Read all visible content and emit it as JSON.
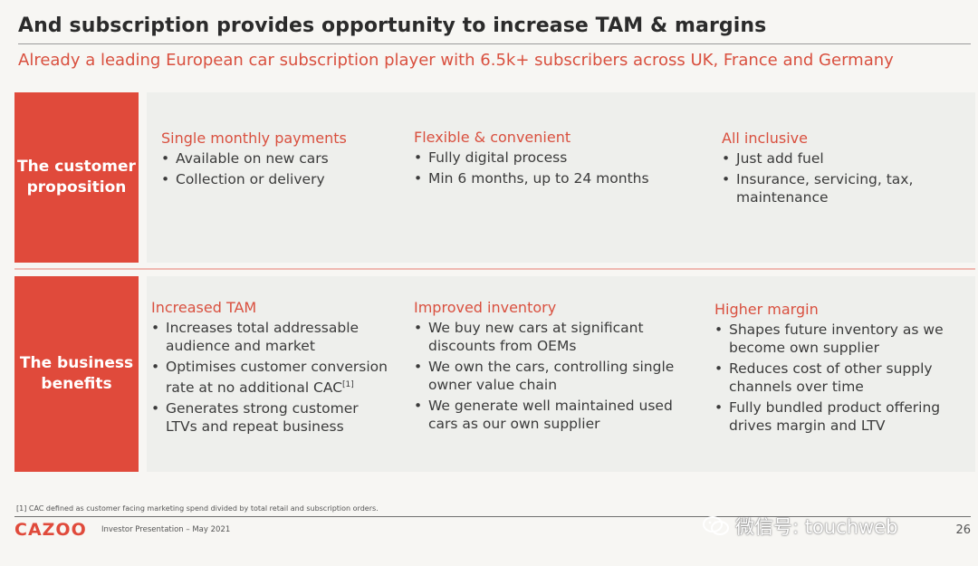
{
  "header": {
    "title": "And subscription provides opportunity to increase TAM & margins",
    "subtitle": "Already a leading European car subscription player with 6.5k+ subscribers across UK, France and Germany"
  },
  "rows": [
    {
      "label": "The customer proposition",
      "columns": [
        {
          "heading": "Single monthly payments",
          "bullets": [
            "Available on new cars",
            "Collection or delivery"
          ]
        },
        {
          "heading": "Flexible & convenient",
          "bullets": [
            "Fully digital process",
            "Min 6 months, up to 24 months"
          ]
        },
        {
          "heading": "All inclusive",
          "bullets": [
            "Just add fuel",
            "Insurance, servicing, tax, maintenance"
          ]
        }
      ]
    },
    {
      "label": "The business benefits",
      "columns": [
        {
          "heading": "Increased TAM",
          "bullets": [
            "Increases total addressable audience and market",
            "Optimises customer conversion rate at no additional CAC",
            "Generates strong customer LTVs and repeat business"
          ],
          "superscript": "[1]"
        },
        {
          "heading": "Improved inventory",
          "bullets": [
            "We buy new cars at significant discounts from OEMs",
            "We own the cars, controlling single owner value chain",
            "We generate well maintained used cars as our own supplier"
          ]
        },
        {
          "heading": "Higher margin",
          "bullets": [
            "Shapes future inventory as we become own supplier",
            "Reduces cost of other supply channels over time",
            "Fully bundled product offering drives margin and LTV"
          ]
        }
      ]
    }
  ],
  "footer": {
    "footnote": "[1] CAC defined as customer facing marketing spend divided by total retail and subscription orders.",
    "logo": "CAZOO",
    "presentation": "Investor Presentation – May 2021",
    "page_number": "26",
    "watermark": "微信号: touchweb"
  },
  "colors": {
    "accent": "#e04a3b",
    "heading": "#d9503f",
    "panel": "#eeefec"
  }
}
